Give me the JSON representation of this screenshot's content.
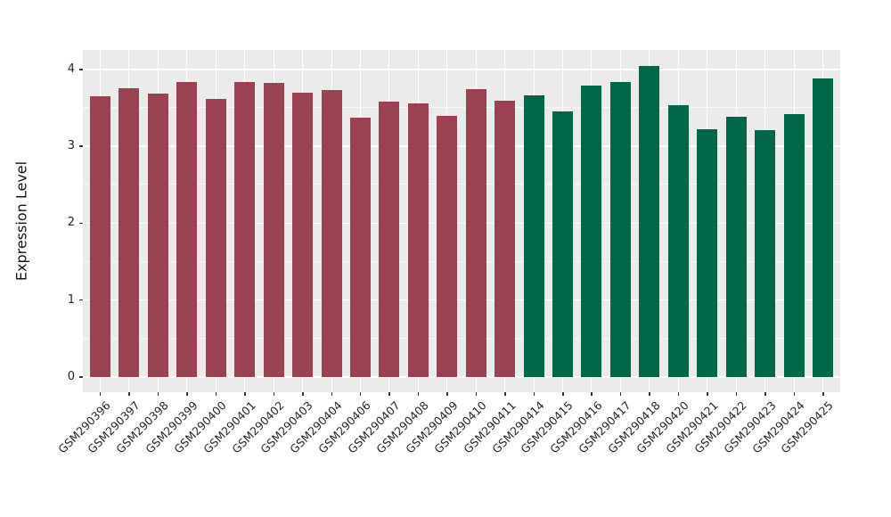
{
  "figure": {
    "background": "#FFFFFF",
    "panel_background": "#EBEBEB",
    "grid_color": "#FFFFFF",
    "tick_color": "#333333",
    "axis_text_color": "#262626"
  },
  "chart_data": {
    "type": "bar",
    "title": "",
    "xlabel": "",
    "ylabel": "Expression Level",
    "ylim": [
      0,
      4.25
    ],
    "yticks": [
      0,
      1,
      2,
      3,
      4
    ],
    "grid": true,
    "legend_position": "none",
    "x_label_rotation_deg": 45,
    "categories": [
      "GSM290396",
      "GSM290397",
      "GSM290398",
      "GSM290399",
      "GSM290400",
      "GSM290401",
      "GSM290402",
      "GSM290403",
      "GSM290404",
      "GSM290406",
      "GSM290407",
      "GSM290408",
      "GSM290409",
      "GSM290410",
      "GSM290411",
      "GSM290414",
      "GSM290415",
      "GSM290416",
      "GSM290417",
      "GSM290418",
      "GSM290420",
      "GSM290421",
      "GSM290422",
      "GSM290423",
      "GSM290424",
      "GSM290425"
    ],
    "values": [
      3.65,
      3.76,
      3.68,
      3.83,
      3.62,
      3.83,
      3.82,
      3.7,
      3.73,
      3.37,
      3.58,
      3.56,
      3.4,
      3.74,
      3.59,
      3.66,
      3.45,
      3.79,
      3.83,
      4.04,
      3.53,
      3.22,
      3.38,
      3.21,
      3.42,
      3.88
    ],
    "groups": [
      "maroon",
      "maroon",
      "maroon",
      "maroon",
      "maroon",
      "maroon",
      "maroon",
      "maroon",
      "maroon",
      "maroon",
      "maroon",
      "maroon",
      "maroon",
      "maroon",
      "maroon",
      "green",
      "green",
      "green",
      "green",
      "green",
      "green",
      "green",
      "green",
      "green",
      "green",
      "green"
    ],
    "group_colors": {
      "maroon": "#9A4152",
      "green": "#006848"
    }
  }
}
